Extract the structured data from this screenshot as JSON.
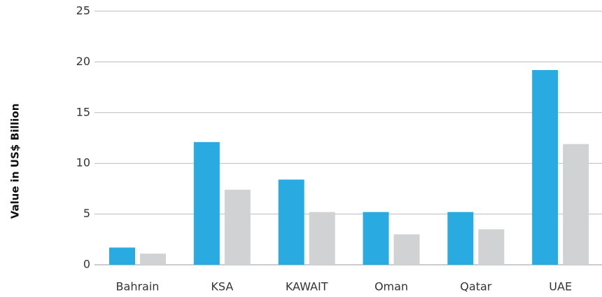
{
  "chart_data": {
    "type": "bar",
    "y_label": "Value in US$ Billion",
    "categories": [
      "Bahrain",
      "KSA",
      "KAWAIT",
      "Oman",
      "Qatar",
      "UAE"
    ],
    "series": [
      {
        "color": "#29abe2",
        "values": [
          1.7,
          12.1,
          8.4,
          5.2,
          5.2,
          19.2
        ]
      },
      {
        "color": "#d1d2d4",
        "values": [
          1.1,
          7.4,
          5.2,
          3.0,
          3.5,
          11.9
        ]
      }
    ],
    "ylim": [
      0,
      25
    ],
    "yticks": [
      0,
      5,
      10,
      15,
      20,
      25
    ],
    "grid": true
  }
}
